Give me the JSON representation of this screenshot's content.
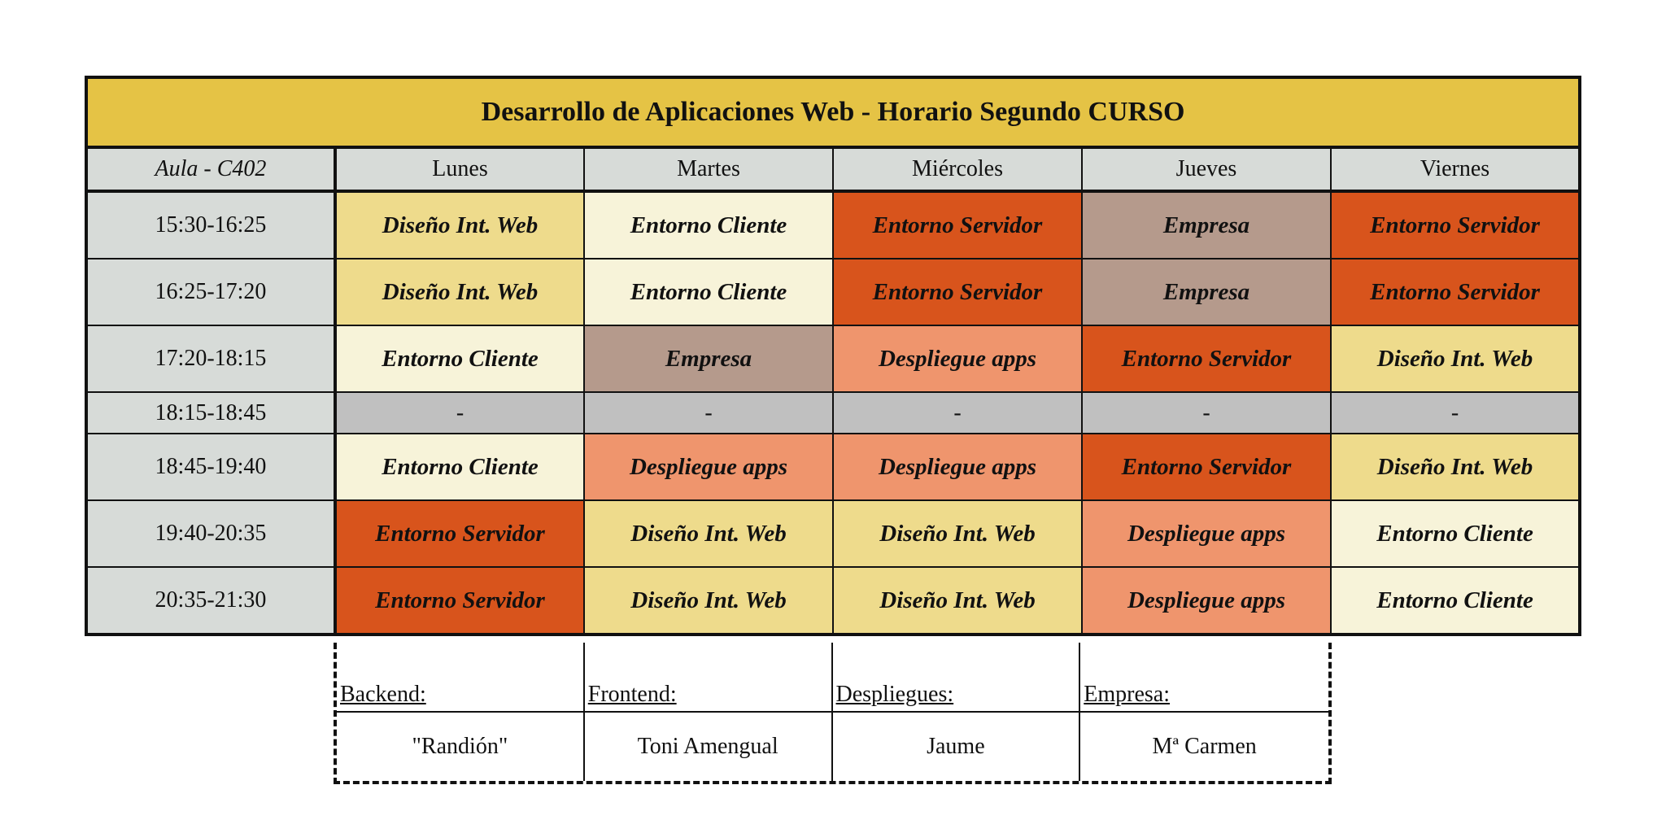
{
  "title": "Desarrollo de Aplicaciones Web - Horario Segundo CURSO",
  "room": "Aula - C402",
  "days": [
    "Lunes",
    "Martes",
    "Miércoles",
    "Jueves",
    "Viernes"
  ],
  "rows": [
    {
      "time": "15:30-16:25",
      "cells": [
        {
          "label": "Diseño Int. Web",
          "kind": "web"
        },
        {
          "label": "Entorno Cliente",
          "kind": "cliente"
        },
        {
          "label": "Entorno Servidor",
          "kind": "servidor"
        },
        {
          "label": "Empresa",
          "kind": "empresa"
        },
        {
          "label": "Entorno Servidor",
          "kind": "servidor"
        }
      ]
    },
    {
      "time": "16:25-17:20",
      "cells": [
        {
          "label": "Diseño Int. Web",
          "kind": "web"
        },
        {
          "label": "Entorno Cliente",
          "kind": "cliente"
        },
        {
          "label": "Entorno Servidor",
          "kind": "servidor"
        },
        {
          "label": "Empresa",
          "kind": "empresa"
        },
        {
          "label": "Entorno Servidor",
          "kind": "servidor"
        }
      ]
    },
    {
      "time": "17:20-18:15",
      "cells": [
        {
          "label": "Entorno Cliente",
          "kind": "cliente"
        },
        {
          "label": "Empresa",
          "kind": "empresa"
        },
        {
          "label": "Despliegue apps",
          "kind": "despl"
        },
        {
          "label": "Entorno Servidor",
          "kind": "servidor"
        },
        {
          "label": "Diseño Int. Web",
          "kind": "web"
        }
      ]
    },
    {
      "time": "18:15-18:45",
      "cells": [
        {
          "label": "-",
          "kind": "break"
        },
        {
          "label": "-",
          "kind": "break"
        },
        {
          "label": "-",
          "kind": "break"
        },
        {
          "label": "-",
          "kind": "break"
        },
        {
          "label": "-",
          "kind": "break"
        }
      ]
    },
    {
      "time": "18:45-19:40",
      "cells": [
        {
          "label": "Entorno Cliente",
          "kind": "cliente"
        },
        {
          "label": "Despliegue apps",
          "kind": "despl"
        },
        {
          "label": "Despliegue apps",
          "kind": "despl"
        },
        {
          "label": "Entorno Servidor",
          "kind": "servidor"
        },
        {
          "label": "Diseño Int. Web",
          "kind": "web"
        }
      ]
    },
    {
      "time": "19:40-20:35",
      "cells": [
        {
          "label": "Entorno Servidor",
          "kind": "servidor"
        },
        {
          "label": "Diseño Int. Web",
          "kind": "web"
        },
        {
          "label": "Diseño Int. Web",
          "kind": "web"
        },
        {
          "label": "Despliegue apps",
          "kind": "despl"
        },
        {
          "label": "Entorno Cliente",
          "kind": "cliente"
        }
      ]
    },
    {
      "time": "20:35-21:30",
      "cells": [
        {
          "label": "Entorno Servidor",
          "kind": "servidor"
        },
        {
          "label": "Diseño Int. Web",
          "kind": "web"
        },
        {
          "label": "Diseño Int. Web",
          "kind": "web"
        },
        {
          "label": "Despliegue apps",
          "kind": "despl"
        },
        {
          "label": "Entorno Cliente",
          "kind": "cliente"
        }
      ]
    }
  ],
  "teachers": [
    {
      "role": "Backend:",
      "name": "\"Randión\""
    },
    {
      "role": "Frontend:",
      "name": "Toni Amengual"
    },
    {
      "role": "Despliegues:",
      "name": "Jaume"
    },
    {
      "role": "Empresa:",
      "name": "Mª Carmen"
    }
  ],
  "colors": {
    "title_bg": "#e5c345",
    "header_bg": "#d7dbd8",
    "servidor": "#d8541c",
    "cliente": "#f7f3d9",
    "web": "#eedb8c",
    "empresa": "#b59a8c",
    "despliegue": "#ef956d",
    "break": "#c0c0c0"
  }
}
